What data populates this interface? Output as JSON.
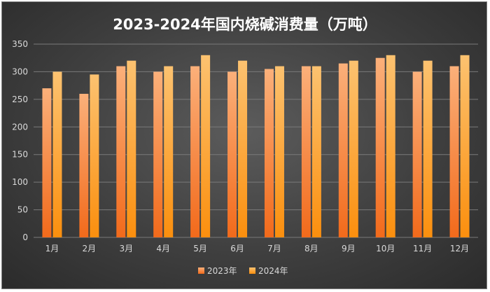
{
  "chart_data": {
    "type": "bar",
    "title": "2023-2024年国内烧碱消费量（万吨）",
    "categories": [
      "1月",
      "2月",
      "3月",
      "4月",
      "5月",
      "6月",
      "7月",
      "8月",
      "9月",
      "10月",
      "11月",
      "12月"
    ],
    "series": [
      {
        "name": "2023年",
        "values": [
          270,
          260,
          310,
          300,
          310,
          300,
          305,
          310,
          315,
          325,
          300,
          310
        ]
      },
      {
        "name": "2024年",
        "values": [
          300,
          295,
          320,
          310,
          330,
          320,
          310,
          310,
          320,
          330,
          320,
          330
        ]
      }
    ],
    "xlabel": "",
    "ylabel": "",
    "ylim": [
      0,
      350
    ],
    "yticks": [
      0,
      50,
      100,
      150,
      200,
      250,
      300,
      350
    ],
    "grid": true,
    "legend_position": "bottom",
    "colors": {
      "2023年": [
        "#fbb07a",
        "#f26a1b"
      ],
      "2024年": [
        "#fcc270",
        "#fb8f0e"
      ],
      "grid": "#7a7a7a"
    }
  }
}
